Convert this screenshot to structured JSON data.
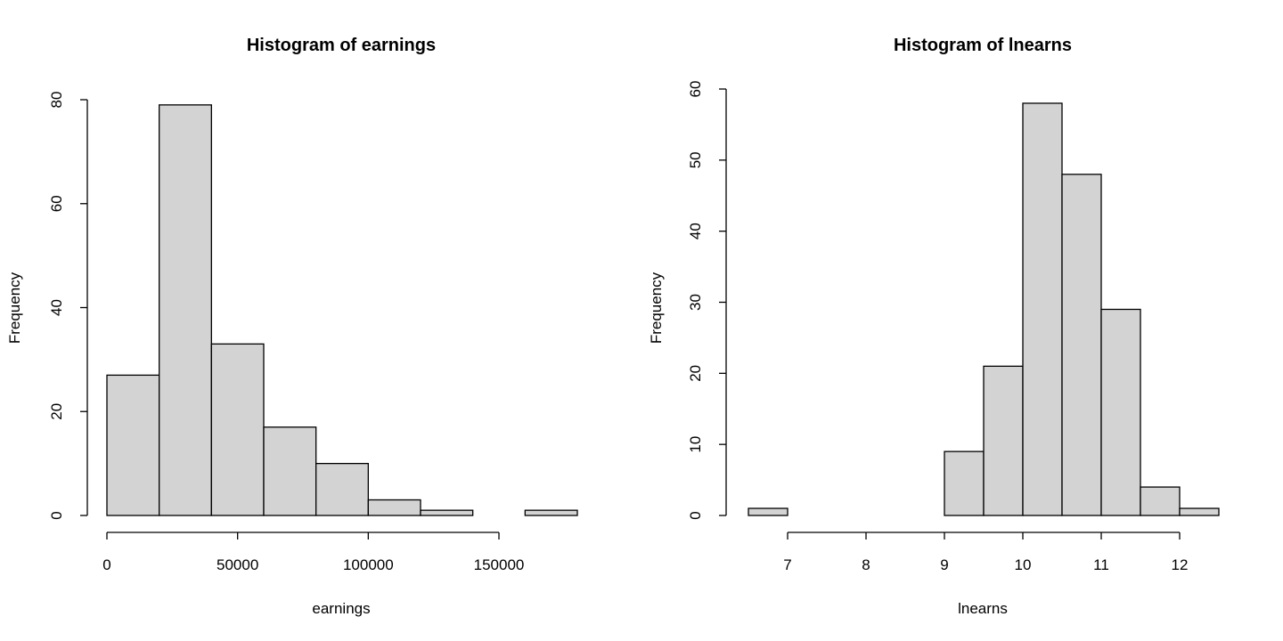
{
  "chart_data": [
    {
      "type": "bar",
      "title": "Histogram of earnings",
      "xlabel": "earnings",
      "ylabel": "Frequency",
      "bin_edges": [
        0,
        20000,
        40000,
        60000,
        80000,
        100000,
        120000,
        140000,
        160000,
        180000
      ],
      "values": [
        27,
        79,
        33,
        17,
        10,
        3,
        1,
        0,
        1
      ],
      "xticks": [
        0,
        50000,
        100000,
        150000
      ],
      "xtick_labels": [
        "0",
        "50000",
        "100000",
        "150000"
      ],
      "yticks": [
        0,
        20,
        40,
        60,
        80
      ],
      "ytick_labels": [
        "0",
        "20",
        "40",
        "60",
        "80"
      ],
      "xlim": [
        0,
        180000
      ],
      "ylim": [
        0,
        80
      ],
      "bar_color": "#d3d3d3",
      "grid": false
    },
    {
      "type": "bar",
      "title": "Histogram of lnearns",
      "xlabel": "lnearns",
      "ylabel": "Frequency",
      "bin_edges": [
        6.5,
        7,
        7.5,
        8,
        8.5,
        9,
        9.5,
        10,
        10.5,
        11,
        11.5,
        12,
        12.5
      ],
      "values": [
        1,
        0,
        0,
        0,
        0,
        9,
        21,
        58,
        48,
        29,
        4,
        1
      ],
      "xticks": [
        7,
        8,
        9,
        10,
        11,
        12
      ],
      "xtick_labels": [
        "7",
        "8",
        "9",
        "10",
        "11",
        "12"
      ],
      "yticks": [
        0,
        10,
        20,
        30,
        40,
        50,
        60
      ],
      "ytick_labels": [
        "0",
        "10",
        "20",
        "30",
        "40",
        "50",
        "60"
      ],
      "xlim": [
        6.5,
        12.5
      ],
      "ylim": [
        0,
        60
      ],
      "bar_color": "#d3d3d3",
      "grid": false
    }
  ]
}
